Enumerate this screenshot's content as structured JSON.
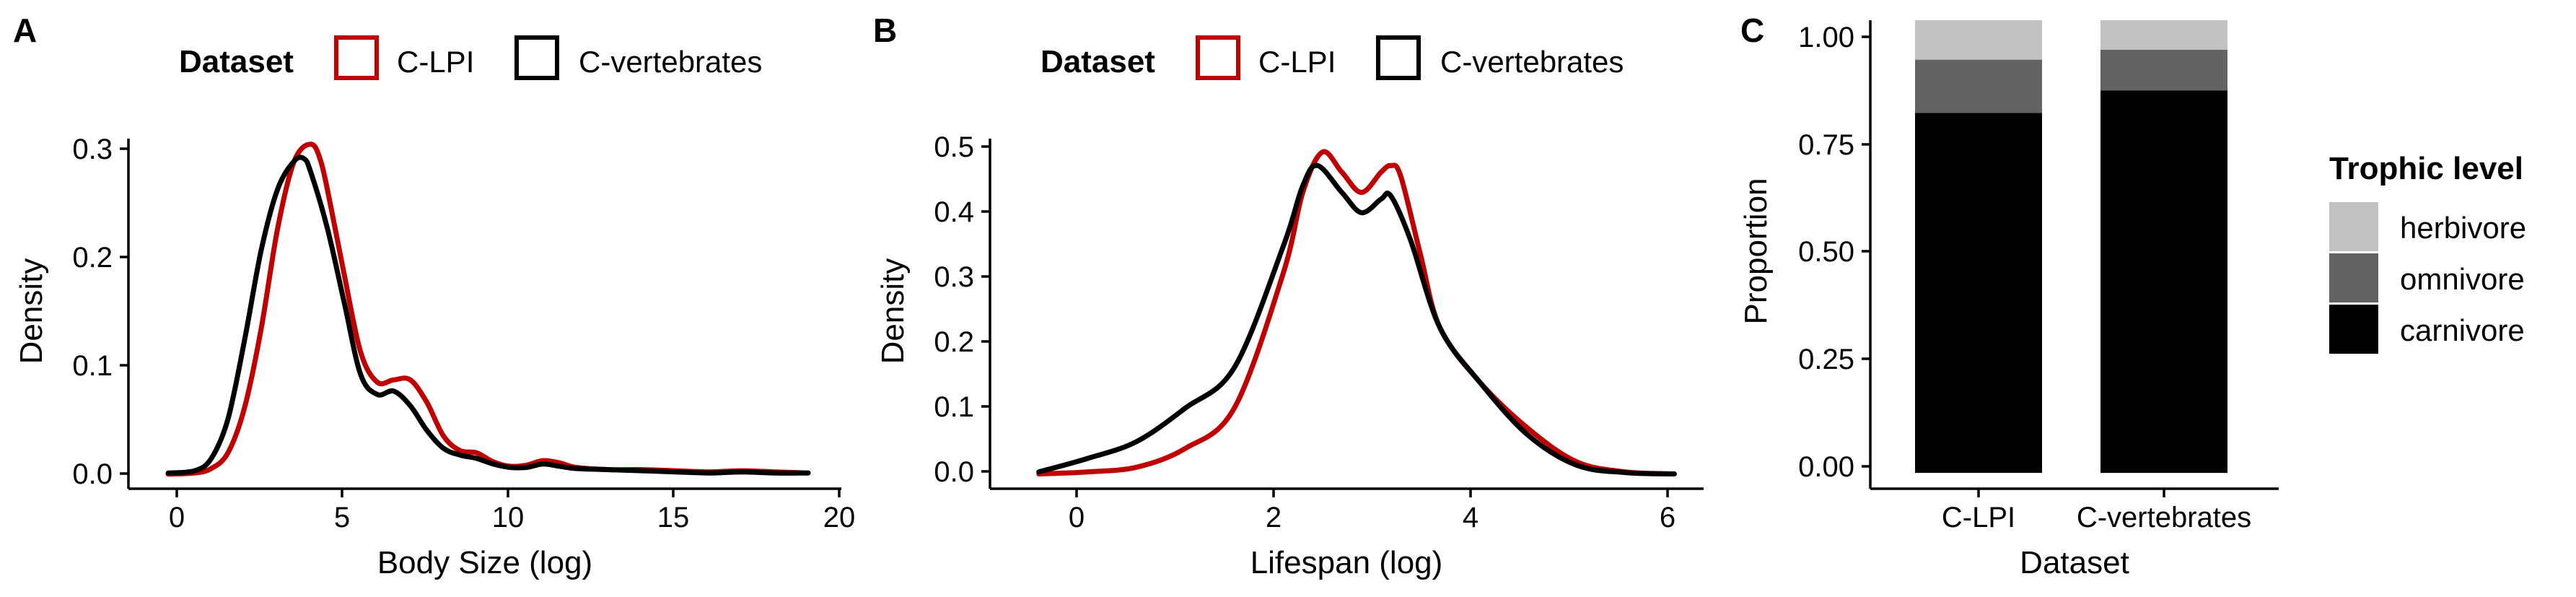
{
  "chart_data": [
    {
      "panel": "A",
      "type": "line",
      "xlabel": "Body Size (log)",
      "ylabel": "Density",
      "xlim": [
        -1.5,
        20
      ],
      "ylim": [
        -0.012,
        0.3
      ],
      "xticks": [
        "0",
        "5",
        "10",
        "15",
        "20"
      ],
      "yticks": [
        "0.0",
        "0.1",
        "0.2",
        "0.3"
      ],
      "legend": {
        "title": "Dataset",
        "position": "top",
        "entries": [
          "C-LPI",
          "C-vertebrates"
        ]
      },
      "series": [
        {
          "name": "C-LPI",
          "color": "#C00000",
          "x": [
            -0.3,
            0.5,
            1.0,
            1.5,
            2.0,
            2.5,
            3.0,
            3.5,
            4.0,
            4.3,
            4.6,
            5.0,
            5.5,
            6.0,
            6.5,
            7.0,
            7.5,
            8.0,
            8.5,
            9.0,
            9.5,
            10.0,
            10.5,
            11.0,
            11.5,
            12.0,
            13.0,
            14.0,
            15.0,
            16.0,
            17.0,
            18.0,
            19.0
          ],
          "y": [
            0.001,
            0.002,
            0.006,
            0.02,
            0.06,
            0.13,
            0.22,
            0.28,
            0.295,
            0.28,
            0.24,
            0.18,
            0.11,
            0.083,
            0.085,
            0.085,
            0.065,
            0.035,
            0.022,
            0.02,
            0.012,
            0.008,
            0.009,
            0.013,
            0.011,
            0.007,
            0.005,
            0.005,
            0.004,
            0.003,
            0.004,
            0.003,
            0.002
          ]
        },
        {
          "name": "C-vertebrates",
          "color": "#000000",
          "x": [
            -0.3,
            0.5,
            1.0,
            1.5,
            2.0,
            2.5,
            3.0,
            3.5,
            3.8,
            4.0,
            4.5,
            5.0,
            5.5,
            6.0,
            6.5,
            7.0,
            7.5,
            8.0,
            8.5,
            9.0,
            9.5,
            10.0,
            10.5,
            11.0,
            11.5,
            12.0,
            13.0,
            14.0,
            15.0,
            16.0,
            17.0,
            18.0,
            19.0
          ],
          "y": [
            0.002,
            0.004,
            0.015,
            0.05,
            0.12,
            0.2,
            0.255,
            0.28,
            0.282,
            0.27,
            0.22,
            0.155,
            0.09,
            0.072,
            0.075,
            0.062,
            0.04,
            0.024,
            0.018,
            0.015,
            0.01,
            0.007,
            0.007,
            0.01,
            0.008,
            0.006,
            0.005,
            0.004,
            0.003,
            0.002,
            0.003,
            0.002,
            0.002
          ]
        }
      ]
    },
    {
      "panel": "B",
      "type": "line",
      "xlabel": "Lifespan (log)",
      "ylabel": "Density",
      "xlim": [
        -1.0,
        6.3
      ],
      "ylim": [
        -0.02,
        0.5
      ],
      "xticks": [
        "0",
        "2",
        "4",
        "6"
      ],
      "yticks": [
        "0.0",
        "0.1",
        "0.2",
        "0.3",
        "0.4",
        "0.5"
      ],
      "legend": {
        "title": "Dataset",
        "position": "top",
        "entries": [
          "C-LPI",
          "C-vertebrates"
        ]
      },
      "series": [
        {
          "name": "C-LPI",
          "color": "#C00000",
          "x": [
            -0.5,
            0.0,
            0.5,
            1.0,
            1.5,
            2.0,
            2.2,
            2.4,
            2.6,
            2.8,
            3.0,
            3.1,
            3.2,
            3.4,
            3.6,
            4.0,
            4.5,
            5.0,
            5.5,
            6.0
          ],
          "y": [
            0.002,
            0.005,
            0.012,
            0.04,
            0.1,
            0.3,
            0.42,
            0.48,
            0.45,
            0.42,
            0.45,
            0.46,
            0.445,
            0.33,
            0.22,
            0.14,
            0.07,
            0.02,
            0.005,
            0.002
          ]
        },
        {
          "name": "C-vertebrates",
          "color": "#000000",
          "x": [
            -0.5,
            0.0,
            0.5,
            1.0,
            1.5,
            2.0,
            2.2,
            2.35,
            2.6,
            2.8,
            3.0,
            3.1,
            3.3,
            3.6,
            4.0,
            4.5,
            5.0,
            5.5,
            6.0
          ],
          "y": [
            0.005,
            0.025,
            0.05,
            0.1,
            0.16,
            0.34,
            0.43,
            0.46,
            0.42,
            0.39,
            0.41,
            0.415,
            0.35,
            0.22,
            0.14,
            0.06,
            0.015,
            0.004,
            0.002
          ]
        }
      ]
    },
    {
      "panel": "C",
      "type": "bar",
      "stacked": true,
      "xlabel": "Dataset",
      "ylabel": "Proportion",
      "ylim": [
        -0.035,
        1.0
      ],
      "yticks": [
        "0.00",
        "0.25",
        "0.50",
        "0.75",
        "1.00"
      ],
      "categories": [
        "C-LPI",
        "C-vertebrates"
      ],
      "legend": {
        "title": "Trophic level",
        "position": "right",
        "entries": [
          "herbivore",
          "omnivore",
          "carnivore"
        ]
      },
      "series": [
        {
          "name": "carnivore",
          "color": "#000000",
          "values": [
            0.795,
            0.845
          ]
        },
        {
          "name": "omnivore",
          "color": "#636363",
          "values": [
            0.118,
            0.09
          ]
        },
        {
          "name": "herbivore",
          "color": "#C2C2C2",
          "values": [
            0.087,
            0.065
          ]
        }
      ]
    }
  ]
}
